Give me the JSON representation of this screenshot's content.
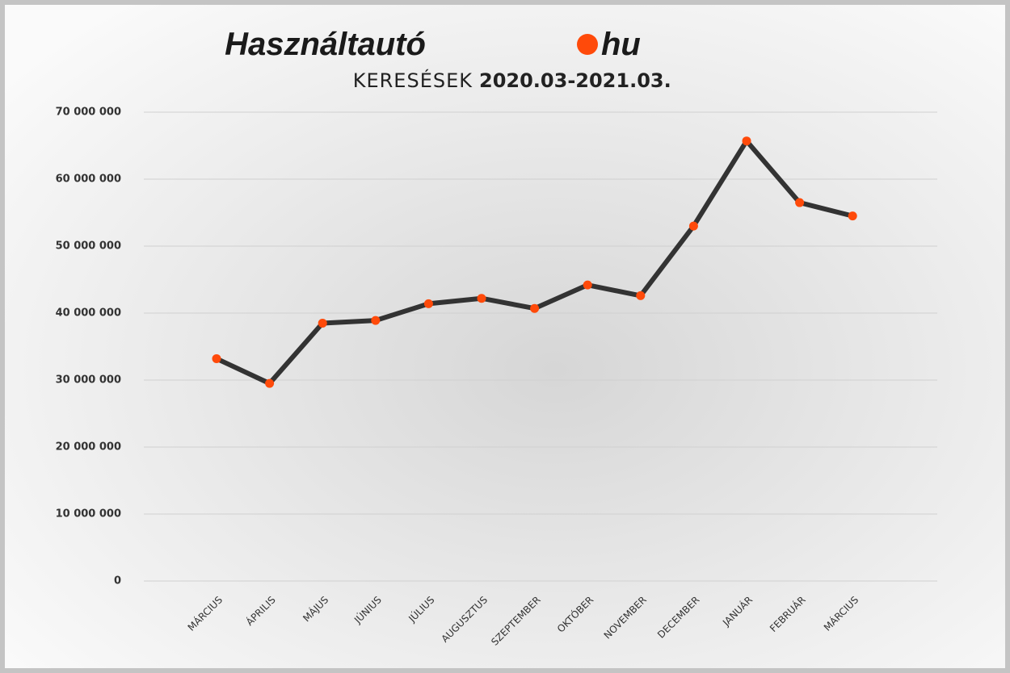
{
  "logo": {
    "left": "Használtautó",
    "right": "hu"
  },
  "chart_data": {
    "type": "line",
    "title": "KERESÉSEK",
    "subtitle": "2020.03-2021.03.",
    "categories": [
      "MÁRCIUS",
      "ÁPRILIS",
      "MÁJUS",
      "JÚNIUS",
      "JÚLIUS",
      "AUGUSZTUS",
      "SZEPTEMBER",
      "OKTÓBER",
      "NOVEMBER",
      "DECEMBER",
      "JANUÁR",
      "FEBRUÁR",
      "MÁRCIUS"
    ],
    "series": [
      {
        "name": "Keresések",
        "color": "#333333",
        "marker_color": "#ff4a0a",
        "values": [
          33200000,
          29500000,
          38500000,
          38900000,
          41400000,
          42200000,
          40700000,
          44200000,
          42600000,
          53000000,
          65700000,
          56500000,
          54500000
        ]
      }
    ],
    "ylim": [
      0,
      70000000
    ],
    "yticks": [
      {
        "value": 0,
        "label": "0"
      },
      {
        "value": 10000000,
        "label": "10 000 000"
      },
      {
        "value": 20000000,
        "label": "20 000 000"
      },
      {
        "value": 30000000,
        "label": "30 000 000"
      },
      {
        "value": 40000000,
        "label": "40 000 000"
      },
      {
        "value": 50000000,
        "label": "50 000 000"
      },
      {
        "value": 60000000,
        "label": "60 000 000"
      },
      {
        "value": 70000000,
        "label": "70 000 000"
      }
    ],
    "grid": true
  }
}
